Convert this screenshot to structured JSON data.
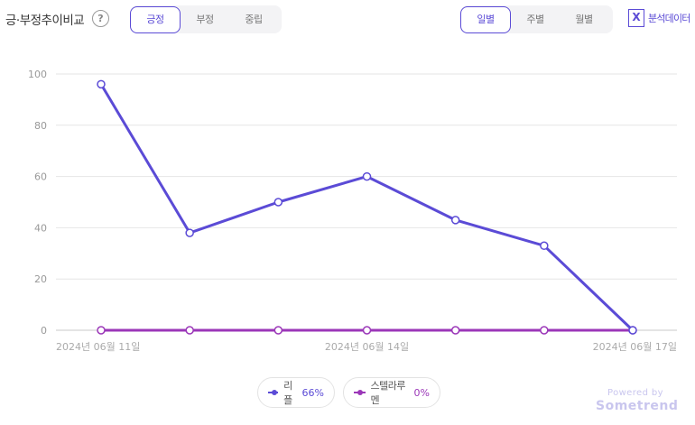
{
  "header": {
    "title": "긍·부정추이비교",
    "help_symbol": "?",
    "sentiment_tabs": [
      {
        "label": "긍정",
        "active": true
      },
      {
        "label": "부정",
        "active": false
      },
      {
        "label": "중립",
        "active": false
      }
    ],
    "period_tabs": [
      {
        "label": "일별",
        "active": true
      },
      {
        "label": "주별",
        "active": false
      },
      {
        "label": "월별",
        "active": false
      }
    ],
    "export_icon_letter": "X",
    "export_label": "분석데이터"
  },
  "legend": [
    {
      "name": "리플",
      "percent": "66%",
      "color": "#5b4bd6"
    },
    {
      "name": "스텔라루멘",
      "percent": "0%",
      "color": "#9b37b8"
    }
  ],
  "footer": {
    "powered_by": "Powered by",
    "brand": "Sometrend"
  },
  "chart_data": {
    "type": "line",
    "x": [
      "2024-06-11",
      "2024-06-12",
      "2024-06-13",
      "2024-06-14",
      "2024-06-15",
      "2024-06-16",
      "2024-06-17"
    ],
    "x_tick_labels": [
      "2024년 06월 11일",
      "2024년 06월 14일",
      "2024년 06월 17일"
    ],
    "y_ticks": [
      "0",
      "20",
      "40",
      "60",
      "80",
      "100"
    ],
    "ylim": [
      0,
      100
    ],
    "grid": true,
    "legend_position": "bottom-center",
    "series": [
      {
        "name": "리플",
        "color": "#5b4bd6",
        "values": [
          96,
          38,
          50,
          60,
          43,
          33,
          0
        ]
      },
      {
        "name": "스텔라루멘",
        "color": "#9b37b8",
        "values": [
          0,
          0,
          0,
          0,
          0,
          0,
          0
        ]
      }
    ]
  }
}
